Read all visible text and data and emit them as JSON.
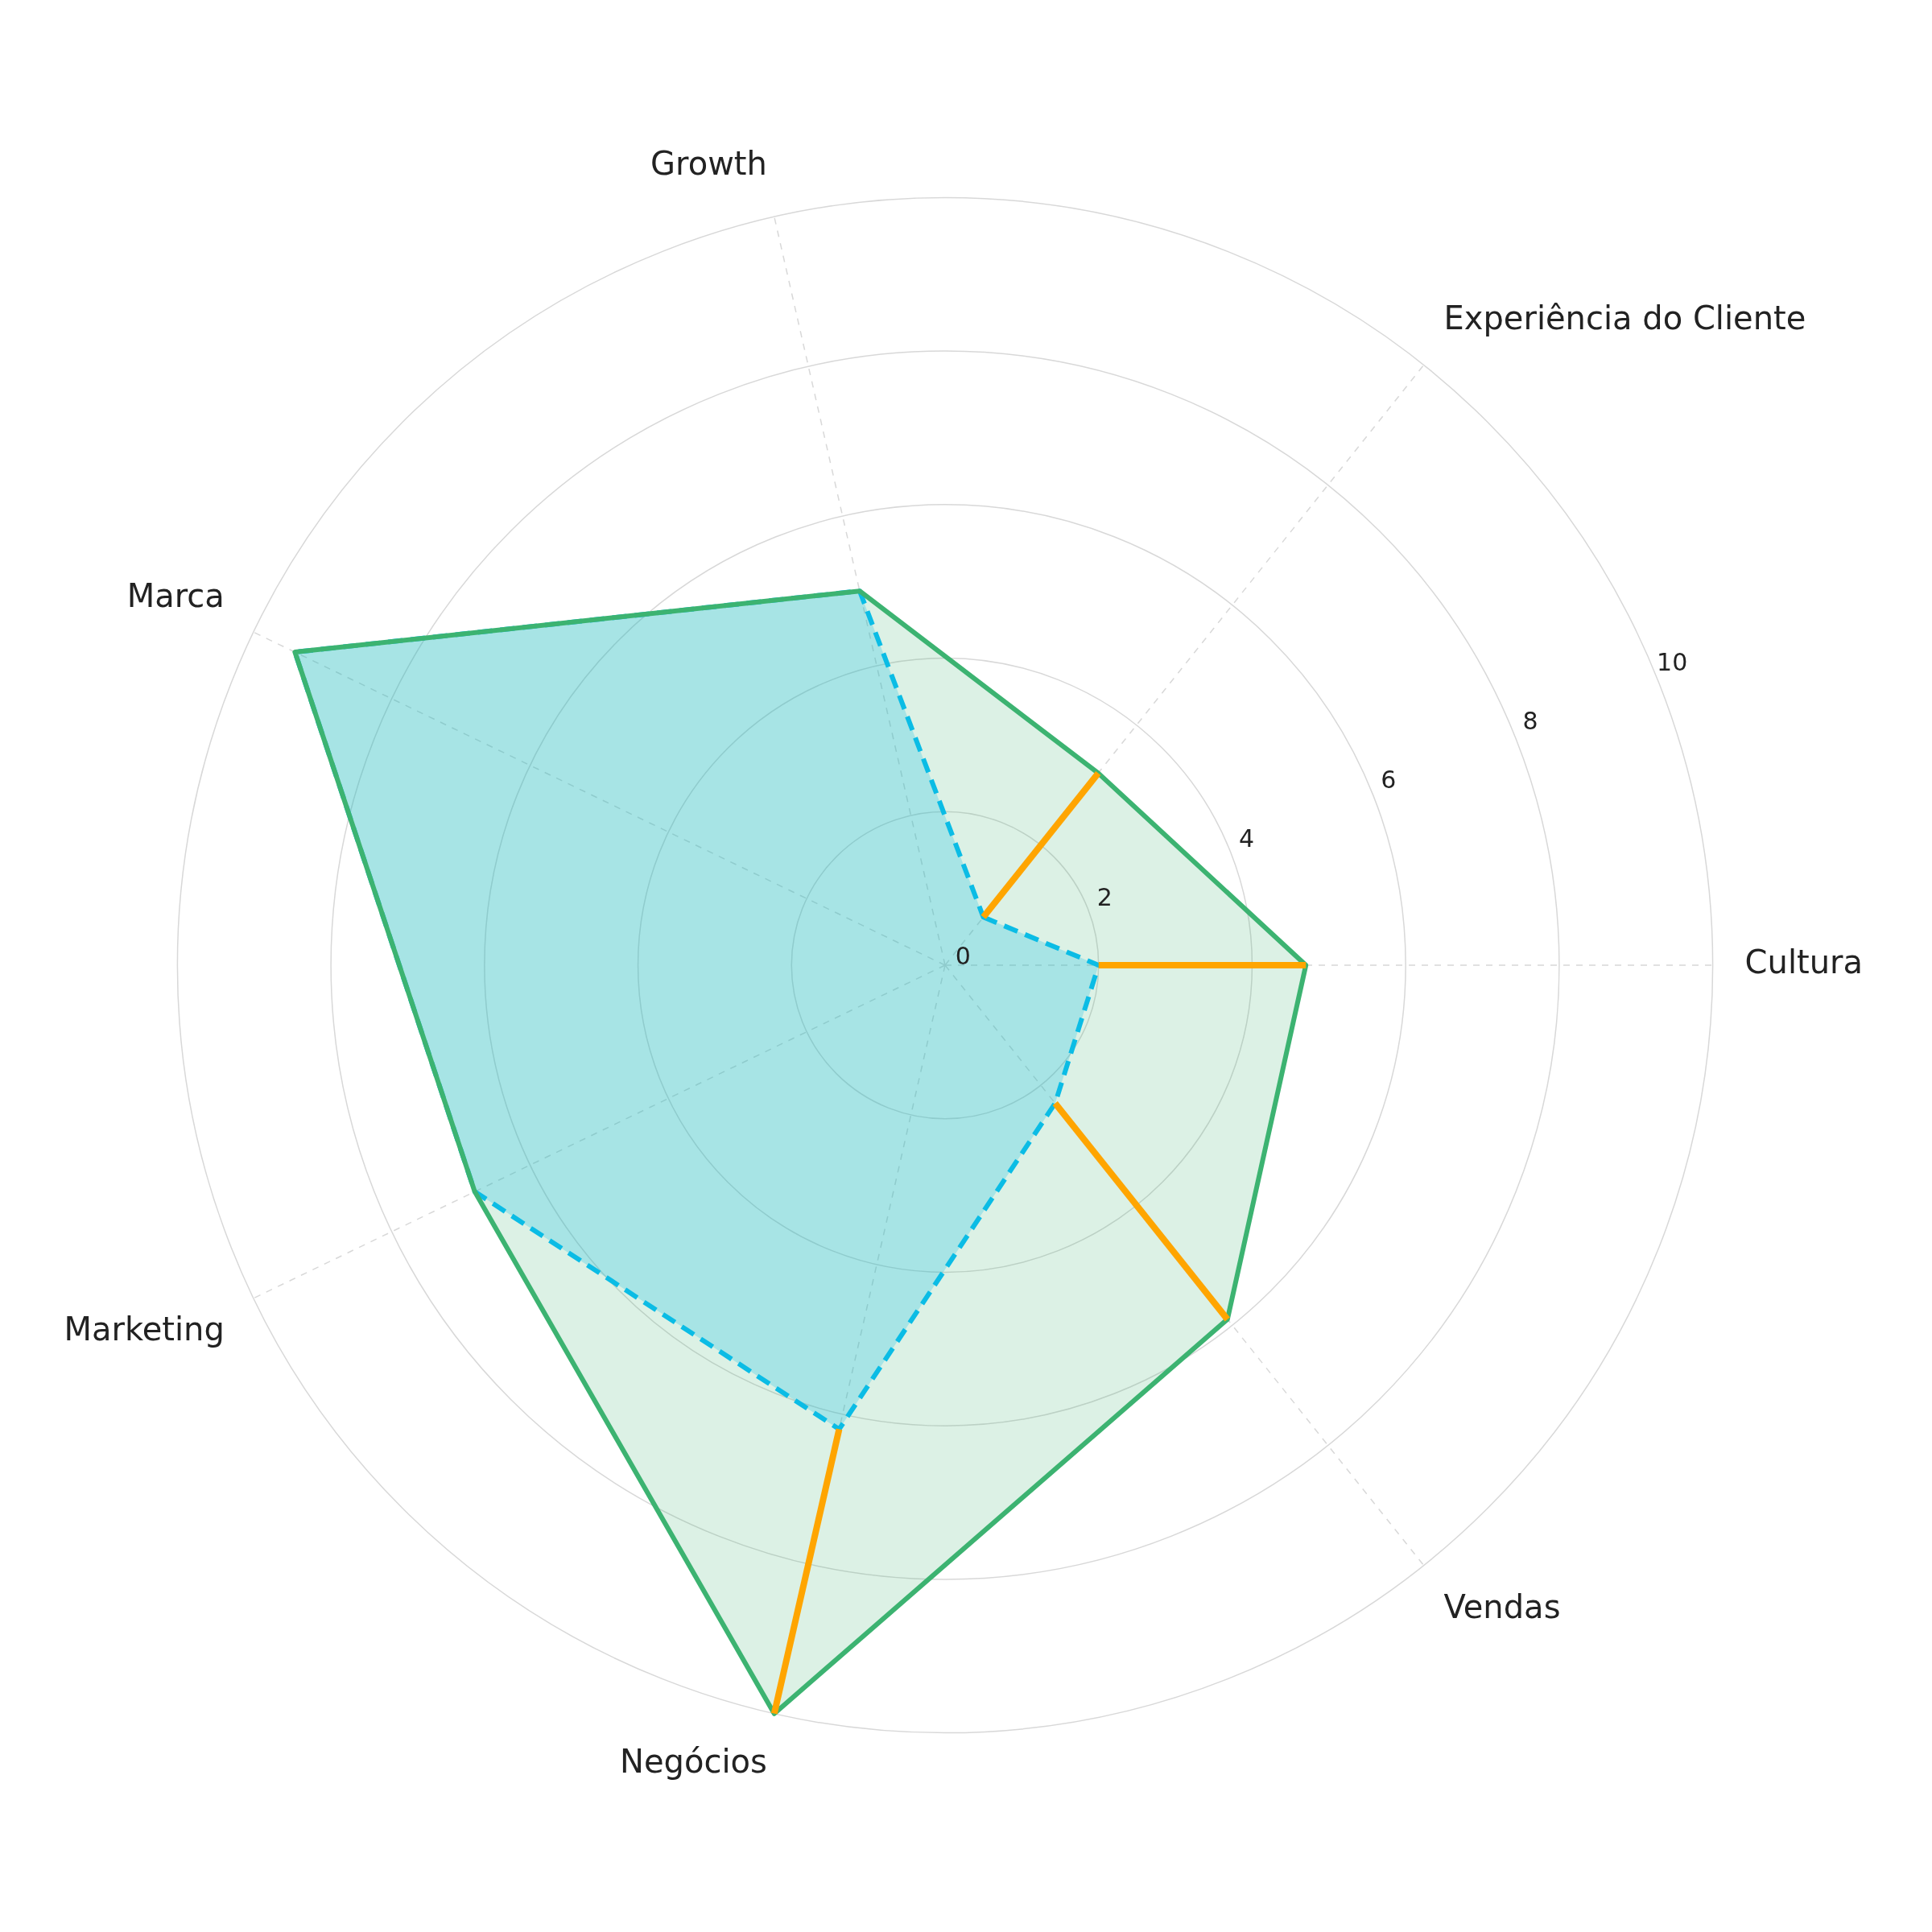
{
  "chart_data": {
    "type": "radar",
    "categories": [
      "Experiência do Cliente",
      "Cultura",
      "Vendas",
      "Negócios",
      "Marketing",
      "Marca",
      "Growth"
    ],
    "series": [
      {
        "color": "#3cb371",
        "line_style": "solid",
        "values": [
          3.2,
          4.7,
          5.9,
          10,
          6.8,
          9.4,
          5
        ]
      },
      {
        "color": "#00bfff",
        "line_style": "dashed",
        "values": [
          0.8,
          2,
          2.3,
          6.2,
          6.8,
          9.4,
          5
        ]
      }
    ],
    "ylim": [
      0,
      10
    ],
    "yticks": [
      0,
      2,
      4,
      6,
      8,
      10
    ],
    "grid": true,
    "legend": false,
    "marker": "none"
  }
}
